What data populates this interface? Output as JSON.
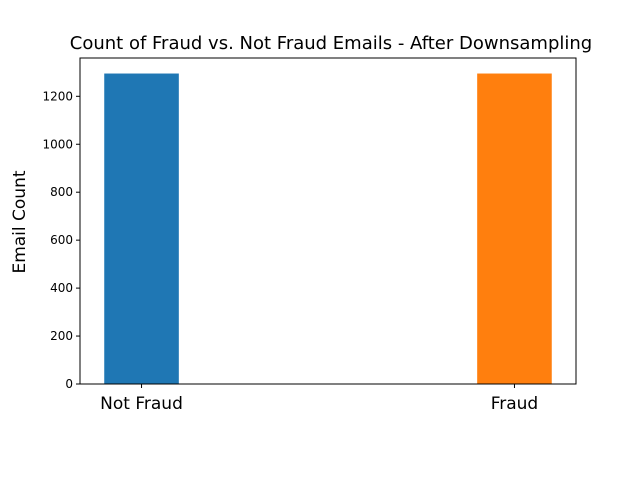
{
  "chart_data": {
    "type": "bar",
    "title": "Count of Fraud vs. Not Fraud Emails - After Downsampling",
    "xlabel": "",
    "ylabel": "Email Count",
    "categories": [
      "Not Fraud",
      "Fraud"
    ],
    "values": [
      1295,
      1295
    ],
    "colors": [
      "#1f77b4",
      "#ff7f0e"
    ],
    "ylim": [
      0,
      1295
    ],
    "yticks": [
      0,
      200,
      400,
      600,
      800,
      1000,
      1200
    ],
    "ytick_labels": [
      "0",
      "200",
      "400",
      "600",
      "800",
      "1000",
      "1200"
    ],
    "grid": false,
    "legend": "none"
  }
}
